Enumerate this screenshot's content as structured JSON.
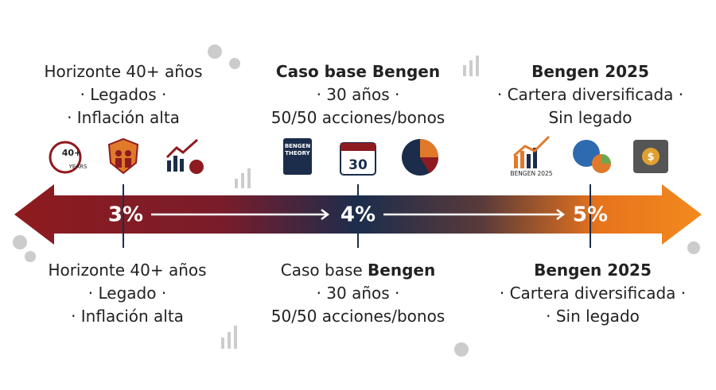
{
  "top": [
    {
      "lines": [
        "Horizonte 40+ años",
        "· Legados ·",
        "· Inflación alta"
      ]
    },
    {
      "lines": [
        "Caso base Bengen",
        "· 30 años ·",
        "50/50 acciones/bonos"
      ]
    },
    {
      "lines": [
        "Bengen 2025",
        "· Cartera diversificada ·",
        "Sin legado"
      ]
    }
  ],
  "rates": [
    "3%",
    "4%",
    "5%"
  ],
  "bottom": [
    {
      "lines": [
        "Horizonte 40+ años",
        "· Legado ·",
        "· Inflación alta"
      ]
    },
    {
      "title_parts": [
        "Caso base ",
        "Bengen"
      ],
      "lines": [
        "· 30 años ·",
        "50/50 acciones/bonos"
      ]
    },
    {
      "lines": [
        "Bengen 2025",
        "· Cartera diversificada ·",
        "· Sin legado"
      ]
    }
  ],
  "icons": {
    "clock_top": "40+",
    "clock_bottom": "YEARS",
    "book": "BENGEN THEORY",
    "calendar": "30",
    "chart": "BENGEN 2025",
    "safe": "$"
  }
}
